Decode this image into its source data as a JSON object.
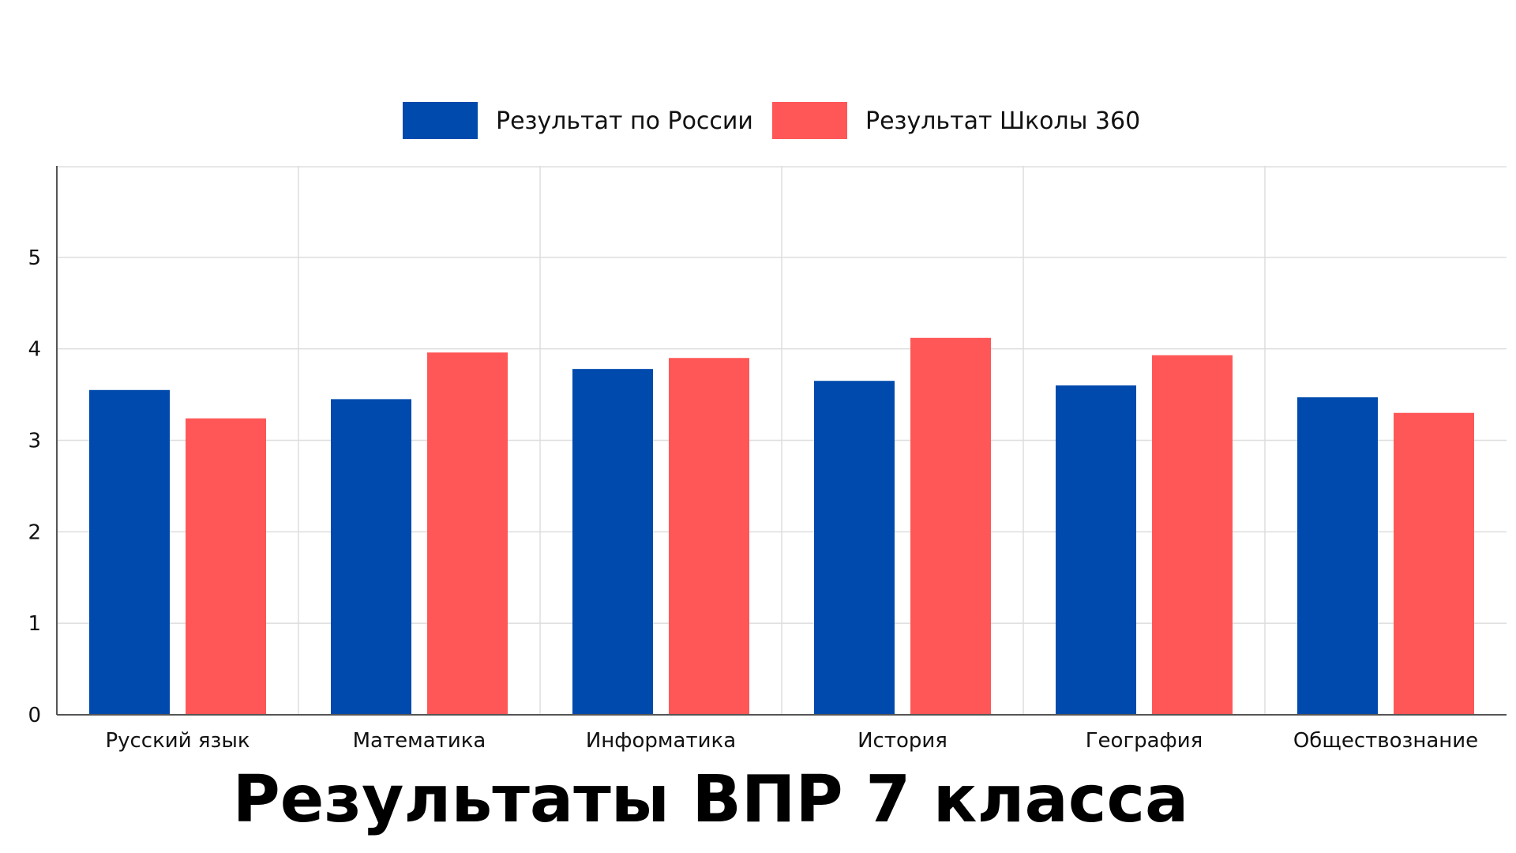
{
  "chart_data": {
    "type": "bar",
    "title": "Результаты ВПР 7 класса",
    "xlabel": "",
    "ylabel": "",
    "categories": [
      "Русский язык",
      "Математика",
      "Информатика",
      "История",
      "География",
      "Обществознание"
    ],
    "series": [
      {
        "name": "Результат по России",
        "color": "#004aad",
        "values": [
          3.55,
          3.45,
          3.78,
          3.65,
          3.6,
          3.47
        ]
      },
      {
        "name": "Результат Школы 360",
        "color": "#ff5757",
        "values": [
          3.24,
          3.96,
          3.9,
          4.12,
          3.93,
          3.3
        ]
      }
    ],
    "ylim": [
      0,
      6
    ],
    "yticks": [
      0,
      1,
      2,
      3,
      4,
      5
    ],
    "grid": true,
    "legend_position": "top-center"
  }
}
